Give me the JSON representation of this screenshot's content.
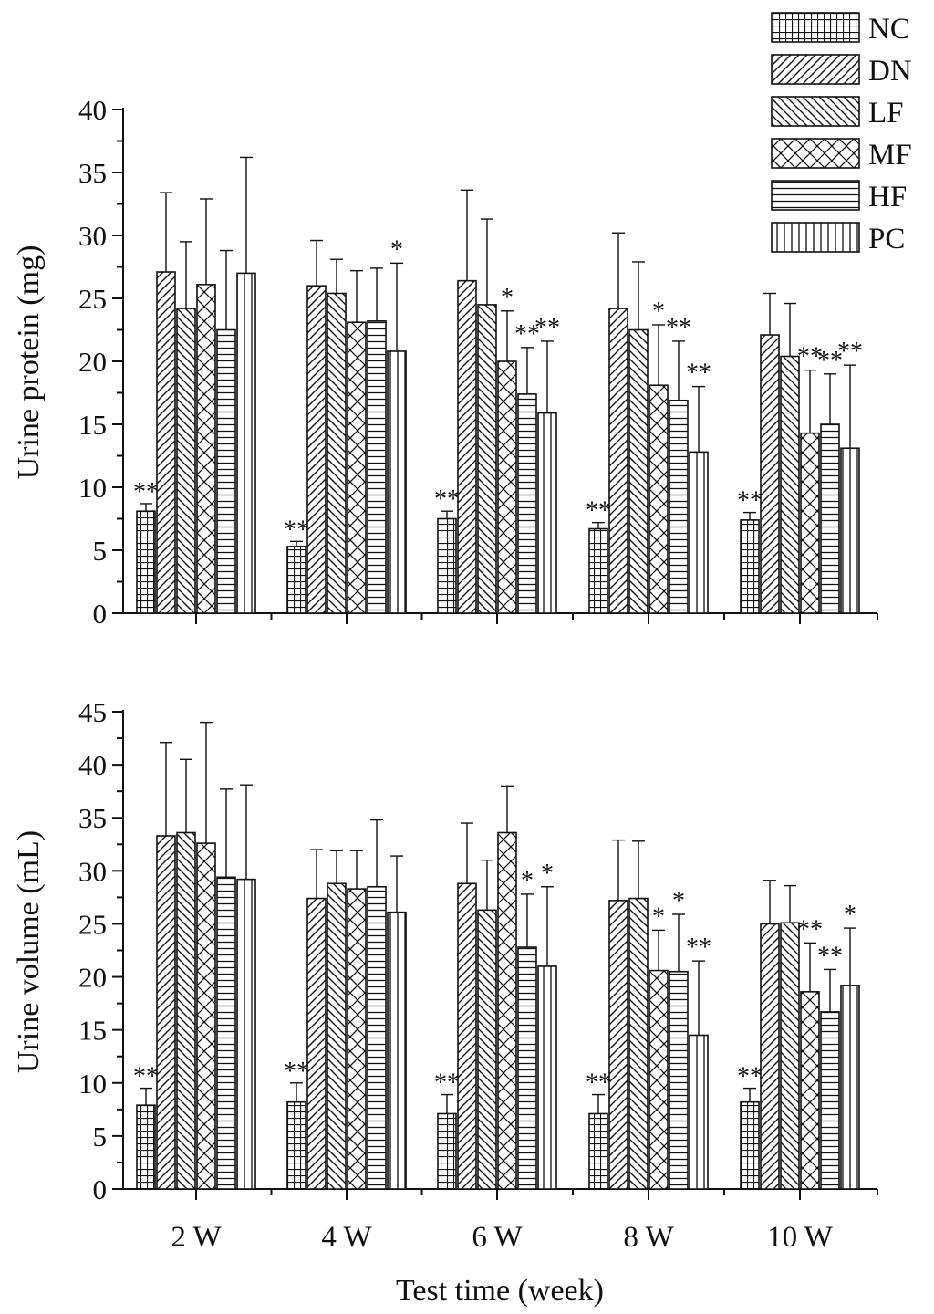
{
  "chart_data": [
    {
      "type": "bar",
      "title": "",
      "xlabel": "",
      "ylabel": "Urine protein (mg)",
      "ylim": [
        0,
        40
      ],
      "yticks": [
        0,
        5,
        10,
        15,
        20,
        25,
        30,
        35,
        40
      ],
      "grid": false,
      "categories": [
        "2 W",
        "4 W",
        "6 W",
        "8 W",
        "10 W"
      ],
      "series": [
        {
          "name": "NC",
          "values": [
            8.1,
            5.3,
            7.5,
            6.7,
            7.4
          ],
          "errors": [
            0.6,
            0.4,
            0.6,
            0.5,
            0.6
          ],
          "sig": [
            "**",
            "**",
            "**",
            "**",
            "**"
          ]
        },
        {
          "name": "DN",
          "values": [
            27.1,
            26.0,
            26.4,
            24.2,
            22.1
          ],
          "errors": [
            6.3,
            3.6,
            7.2,
            6.0,
            3.3
          ],
          "sig": [
            "",
            "",
            "",
            "",
            ""
          ]
        },
        {
          "name": "LF",
          "values": [
            24.2,
            25.4,
            24.5,
            22.5,
            20.4
          ],
          "errors": [
            5.3,
            2.7,
            6.8,
            5.4,
            4.2
          ],
          "sig": [
            "",
            "",
            "",
            "",
            ""
          ]
        },
        {
          "name": "MF",
          "values": [
            26.1,
            23.1,
            20.0,
            18.1,
            14.3
          ],
          "errors": [
            6.8,
            4.1,
            4.0,
            4.8,
            5.0
          ],
          "sig": [
            "",
            "",
            "*",
            "*",
            "**"
          ]
        },
        {
          "name": "HF",
          "values": [
            22.5,
            23.2,
            17.4,
            16.9,
            15.0
          ],
          "errors": [
            6.3,
            4.2,
            3.7,
            4.7,
            4.0
          ],
          "sig": [
            "",
            "",
            "**",
            "**",
            "**"
          ]
        },
        {
          "name": "PC",
          "values": [
            27.0,
            20.8,
            15.9,
            12.8,
            13.1
          ],
          "errors": [
            9.2,
            7.0,
            5.7,
            5.2,
            6.6
          ],
          "sig": [
            "",
            "*",
            "**",
            "**",
            "**"
          ]
        }
      ]
    },
    {
      "type": "bar",
      "title": "",
      "xlabel": "Test time (week)",
      "ylabel": "Urine volume (mL)",
      "ylim": [
        0,
        45
      ],
      "yticks": [
        0,
        5,
        10,
        15,
        20,
        25,
        30,
        35,
        40,
        45
      ],
      "grid": false,
      "categories": [
        "2 W",
        "4 W",
        "6 W",
        "8 W",
        "10 W"
      ],
      "series": [
        {
          "name": "NC",
          "values": [
            7.9,
            8.2,
            7.1,
            7.1,
            8.2
          ],
          "errors": [
            1.6,
            1.8,
            1.8,
            1.8,
            1.3
          ],
          "sig": [
            "**",
            "**",
            "**",
            "**",
            "**"
          ]
        },
        {
          "name": "DN",
          "values": [
            33.3,
            27.4,
            28.8,
            27.2,
            25.0
          ],
          "errors": [
            8.8,
            4.6,
            5.7,
            5.7,
            4.1
          ],
          "sig": [
            "",
            "",
            "",
            "",
            ""
          ]
        },
        {
          "name": "LF",
          "values": [
            33.6,
            28.8,
            26.3,
            27.4,
            25.1
          ],
          "errors": [
            6.9,
            3.1,
            4.7,
            5.4,
            3.5
          ],
          "sig": [
            "",
            "",
            "",
            "",
            ""
          ]
        },
        {
          "name": "MF",
          "values": [
            32.6,
            28.3,
            33.6,
            20.6,
            18.6
          ],
          "errors": [
            11.4,
            3.6,
            4.4,
            3.8,
            4.6
          ],
          "sig": [
            "",
            "",
            "",
            "*",
            "**"
          ]
        },
        {
          "name": "HF",
          "values": [
            29.4,
            28.5,
            22.8,
            20.5,
            16.7
          ],
          "errors": [
            8.3,
            6.3,
            5.0,
            5.4,
            4.0
          ],
          "sig": [
            "",
            "",
            "*",
            "*",
            "**"
          ]
        },
        {
          "name": "PC",
          "values": [
            29.2,
            26.1,
            21.0,
            14.5,
            19.2
          ],
          "errors": [
            8.9,
            5.3,
            7.5,
            7.0,
            5.4
          ],
          "sig": [
            "",
            "",
            "*",
            "**",
            "*"
          ]
        }
      ]
    }
  ],
  "legend": {
    "position": "top-right",
    "patterns": {
      "NC": "grid",
      "DN": "diagonal-forward",
      "LF": "diagonal-backward",
      "MF": "crosshatch",
      "HF": "horizontal-lines",
      "PC": "vertical-lines"
    }
  },
  "colors": {
    "ink": "#111111",
    "background": "#ffffff"
  }
}
